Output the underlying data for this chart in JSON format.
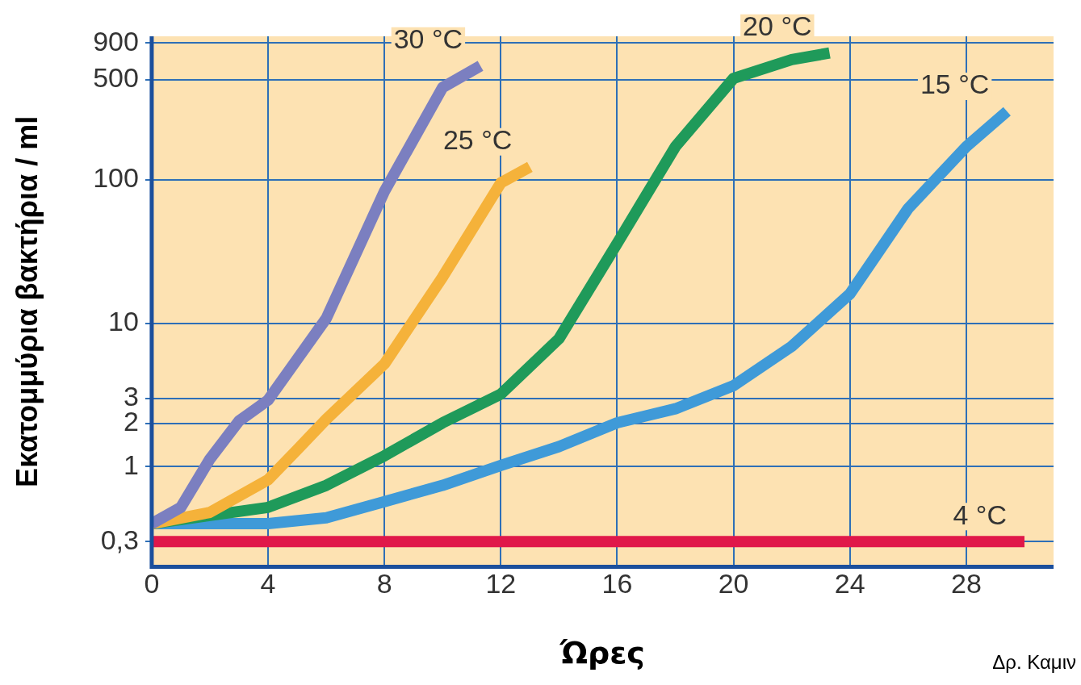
{
  "chart_data": {
    "type": "line",
    "xlabel": "Ώρες",
    "ylabel": "Εκατομμύρια βακτήρια / ml",
    "xlim": [
      0,
      31
    ],
    "xticks": [
      0,
      4,
      8,
      12,
      16,
      20,
      24,
      28
    ],
    "ylim": [
      0.2,
      1000
    ],
    "yticks": [
      {
        "value": 0.3,
        "label": "0,3"
      },
      1,
      2,
      3,
      10,
      100,
      500,
      900
    ],
    "log": "y",
    "grid": true,
    "legend": false,
    "marker": "none",
    "line_style": "solid",
    "annotations": [
      "Δρ. Καμιν"
    ],
    "series": [
      {
        "name": "30 °C",
        "color": "#7b7fc0",
        "x": [
          0,
          1,
          2,
          3,
          4,
          6,
          8,
          10,
          11.3
        ],
        "values": [
          0.4,
          0.52,
          1.13,
          2.08,
          2.91,
          10.8,
          83,
          440,
          622
        ]
      },
      {
        "name": "25 °C",
        "color": "#f5b23a",
        "x": [
          0,
          2,
          4,
          5,
          6,
          8,
          10,
          12,
          13
        ],
        "values": [
          0.4,
          0.48,
          0.81,
          1.31,
          2.14,
          5.2,
          21,
          95,
          123
        ]
      },
      {
        "name": "20 °C",
        "color": "#1f9a5a",
        "x": [
          0,
          4,
          6,
          8,
          10,
          12,
          14,
          16,
          18,
          20,
          22,
          23.3
        ],
        "values": [
          0.4,
          0.52,
          0.74,
          1.19,
          2.02,
          3.2,
          7.8,
          36,
          170,
          509,
          688,
          765
        ]
      },
      {
        "name": "15 °C",
        "color": "#3f9ad8",
        "x": [
          0,
          4,
          6,
          8,
          10,
          12,
          14,
          16,
          18,
          20,
          22,
          24,
          26,
          28,
          29.4
        ],
        "values": [
          0.4,
          0.4,
          0.44,
          0.57,
          0.74,
          1.02,
          1.38,
          2.02,
          2.53,
          3.67,
          6.9,
          16,
          63,
          170,
          300
        ]
      },
      {
        "name": "4 °C",
        "color": "#e0184a",
        "x": [
          0,
          30
        ],
        "values": [
          0.3,
          0.3
        ]
      }
    ]
  }
}
